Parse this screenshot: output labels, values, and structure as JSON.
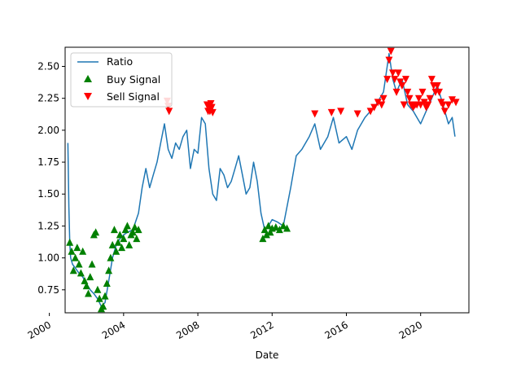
{
  "chart_data": {
    "type": "line",
    "title": "",
    "xlabel": "Date",
    "ylabel": "",
    "xlim": [
      2000.85,
      2022.6
    ],
    "ylim": [
      0.57,
      2.65
    ],
    "x_ticks": [
      2000,
      2004,
      2008,
      2012,
      2016,
      2020
    ],
    "x_tick_labels": [
      "2000",
      "2004",
      "2008",
      "2012",
      "2016",
      "2020"
    ],
    "y_ticks": [
      0.75,
      1.0,
      1.25,
      1.5,
      1.75,
      2.0,
      2.25,
      2.5
    ],
    "y_tick_labels": [
      "0.75",
      "1.00",
      "1.25",
      "1.50",
      "1.75",
      "2.00",
      "2.25",
      "2.50"
    ],
    "grid": false,
    "legend_placement": "upper left",
    "colors": {
      "ratio": "#1f77b4",
      "buy": "#008000",
      "sell": "#ff0000"
    },
    "series": [
      {
        "name": "Ratio",
        "kind": "line",
        "x": [
          2001.0,
          2001.05,
          2001.1,
          2001.15,
          2001.25,
          2001.4,
          2001.6,
          2001.8,
          2002.0,
          2002.2,
          2002.4,
          2002.6,
          2002.8,
          2003.0,
          2003.2,
          2003.4,
          2003.6,
          2003.8,
          2004.0,
          2004.2,
          2004.5,
          2004.8,
          2005.0,
          2005.2,
          2005.4,
          2005.6,
          2005.8,
          2006.0,
          2006.2,
          2006.4,
          2006.6,
          2006.8,
          2007.0,
          2007.2,
          2007.4,
          2007.6,
          2007.8,
          2008.0,
          2008.2,
          2008.4,
          2008.6,
          2008.8,
          2009.0,
          2009.2,
          2009.4,
          2009.6,
          2009.8,
          2010.0,
          2010.2,
          2010.4,
          2010.6,
          2010.8,
          2011.0,
          2011.2,
          2011.4,
          2011.6,
          2011.8,
          2012.0,
          2012.3,
          2012.6,
          2013.0,
          2013.3,
          2013.6,
          2014.0,
          2014.3,
          2014.6,
          2015.0,
          2015.3,
          2015.6,
          2016.0,
          2016.3,
          2016.6,
          2017.0,
          2017.3,
          2017.6,
          2018.0,
          2018.3,
          2018.5,
          2018.7,
          2019.0,
          2019.3,
          2019.6,
          2020.0,
          2020.3,
          2020.6,
          2020.9,
          2021.2,
          2021.5,
          2021.7,
          2021.85
        ],
        "values": [
          1.9,
          1.4,
          1.12,
          1.0,
          0.95,
          0.92,
          0.88,
          0.85,
          0.8,
          0.75,
          0.72,
          0.68,
          0.62,
          0.65,
          0.82,
          1.0,
          1.1,
          1.15,
          1.18,
          1.2,
          1.22,
          1.35,
          1.55,
          1.7,
          1.55,
          1.65,
          1.75,
          1.9,
          2.05,
          1.85,
          1.78,
          1.9,
          1.85,
          1.95,
          2.0,
          1.7,
          1.85,
          1.82,
          2.1,
          2.05,
          1.7,
          1.5,
          1.45,
          1.7,
          1.65,
          1.55,
          1.6,
          1.7,
          1.8,
          1.65,
          1.5,
          1.55,
          1.75,
          1.6,
          1.35,
          1.22,
          1.25,
          1.3,
          1.28,
          1.25,
          1.55,
          1.8,
          1.85,
          1.95,
          2.05,
          1.85,
          1.95,
          2.1,
          1.9,
          1.95,
          1.85,
          2.0,
          2.1,
          2.15,
          2.2,
          2.3,
          2.6,
          2.4,
          2.3,
          2.4,
          2.2,
          2.15,
          2.05,
          2.15,
          2.25,
          2.35,
          2.2,
          2.05,
          2.1,
          1.95
        ]
      },
      {
        "name": "Buy Signal",
        "kind": "marker",
        "marker": "triangle-up",
        "x": [
          2001.1,
          2001.2,
          2001.3,
          2001.4,
          2001.5,
          2001.6,
          2001.7,
          2001.8,
          2001.9,
          2002.0,
          2002.1,
          2002.2,
          2002.3,
          2002.4,
          2002.5,
          2002.6,
          2002.7,
          2002.8,
          2002.9,
          2003.0,
          2003.1,
          2003.2,
          2003.3,
          2003.4,
          2003.5,
          2003.6,
          2003.7,
          2003.8,
          2003.9,
          2004.0,
          2004.1,
          2004.2,
          2004.3,
          2004.4,
          2004.5,
          2004.6,
          2004.7,
          2004.8,
          2011.5,
          2011.6,
          2011.7,
          2011.8,
          2011.9,
          2012.0,
          2012.2,
          2012.4,
          2012.6,
          2012.8
        ],
        "values": [
          1.12,
          1.05,
          0.9,
          1.0,
          1.08,
          0.95,
          0.88,
          1.05,
          0.82,
          0.78,
          0.72,
          0.85,
          0.95,
          1.18,
          1.2,
          0.75,
          0.68,
          0.6,
          0.62,
          0.7,
          0.8,
          0.9,
          1.0,
          1.1,
          1.22,
          1.05,
          1.12,
          1.18,
          1.08,
          1.15,
          1.22,
          1.25,
          1.1,
          1.18,
          1.2,
          1.24,
          1.15,
          1.22,
          1.15,
          1.22,
          1.18,
          1.25,
          1.2,
          1.23,
          1.24,
          1.22,
          1.25,
          1.23
        ]
      },
      {
        "name": "Sell Signal",
        "kind": "marker",
        "marker": "triangle-down",
        "x": [
          2006.35,
          2006.4,
          2006.45,
          2008.5,
          2008.55,
          2008.6,
          2008.65,
          2008.7,
          2008.75,
          2008.8,
          2014.3,
          2015.2,
          2015.7,
          2016.6,
          2017.3,
          2017.5,
          2017.7,
          2017.9,
          2018.0,
          2018.2,
          2018.3,
          2018.4,
          2018.5,
          2018.6,
          2018.7,
          2018.8,
          2018.9,
          2019.0,
          2019.1,
          2019.2,
          2019.3,
          2019.4,
          2019.5,
          2019.6,
          2019.7,
          2019.8,
          2019.9,
          2020.0,
          2020.1,
          2020.2,
          2020.3,
          2020.4,
          2020.5,
          2020.6,
          2020.7,
          2020.8,
          2020.9,
          2021.0,
          2021.1,
          2021.2,
          2021.3,
          2021.5,
          2021.7,
          2021.9
        ],
        "values": [
          2.23,
          2.19,
          2.15,
          2.2,
          2.15,
          2.19,
          2.15,
          2.21,
          2.18,
          2.14,
          2.13,
          2.14,
          2.15,
          2.13,
          2.15,
          2.18,
          2.22,
          2.2,
          2.25,
          2.4,
          2.55,
          2.62,
          2.45,
          2.4,
          2.3,
          2.45,
          2.38,
          2.35,
          2.2,
          2.4,
          2.3,
          2.25,
          2.2,
          2.18,
          2.2,
          2.2,
          2.25,
          2.2,
          2.3,
          2.22,
          2.18,
          2.2,
          2.25,
          2.4,
          2.35,
          2.3,
          2.35,
          2.3,
          2.22,
          2.2,
          2.15,
          2.2,
          2.24,
          2.22
        ]
      }
    ]
  }
}
